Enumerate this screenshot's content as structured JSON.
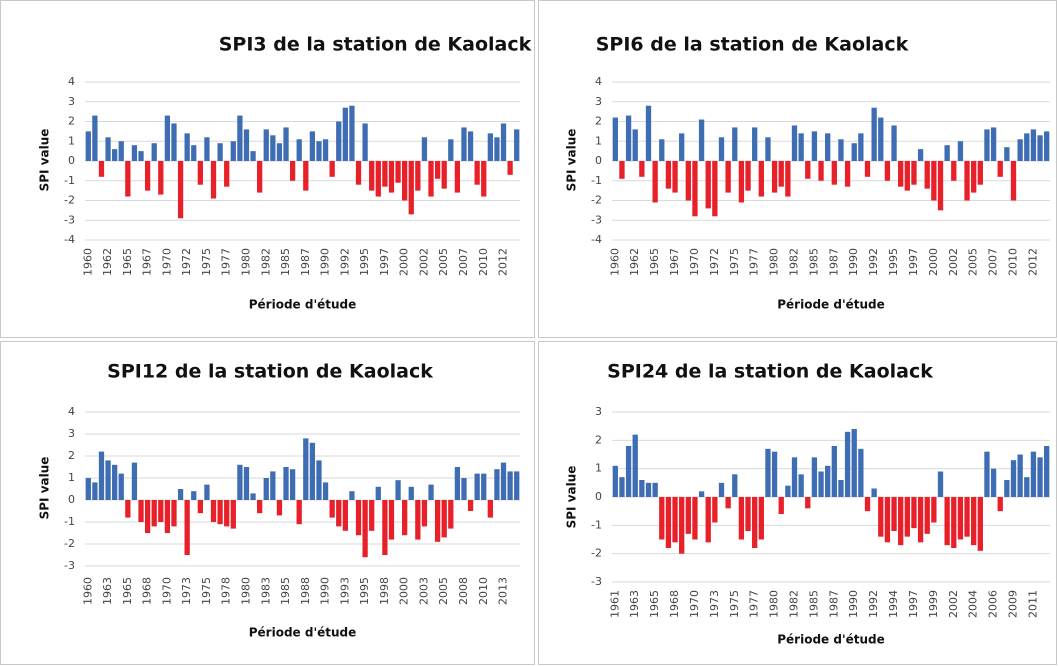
{
  "chart_data": [
    {
      "type": "bar",
      "title": "SPI3 de la station de Kaolack",
      "y_label": "SPI value",
      "x_label": "Période d'étude",
      "categories": [
        "1960",
        null,
        null,
        "1962",
        null,
        null,
        "1965",
        null,
        null,
        "1967",
        null,
        null,
        "1970",
        null,
        null,
        "1972",
        null,
        null,
        "1975",
        null,
        null,
        "1977",
        null,
        null,
        "1980",
        null,
        null,
        "1982",
        null,
        null,
        "1985",
        null,
        null,
        "1987",
        null,
        null,
        "1990",
        null,
        null,
        "1992",
        null,
        null,
        "1995",
        null,
        null,
        "1997",
        null,
        null,
        "2000",
        null,
        null,
        "2002",
        null,
        null,
        "2005",
        null,
        null,
        "2007",
        null,
        null,
        "2010",
        null,
        null,
        "2012",
        null,
        null
      ],
      "values": [
        1.5,
        2.3,
        -0.8,
        1.2,
        0.6,
        1.0,
        -1.8,
        0.8,
        0.5,
        -1.5,
        0.9,
        -1.7,
        2.3,
        1.9,
        -2.9,
        1.4,
        0.8,
        -1.2,
        1.2,
        -1.9,
        0.9,
        -1.3,
        1.0,
        2.3,
        1.6,
        0.5,
        -1.6,
        1.6,
        1.3,
        0.9,
        1.7,
        -1.0,
        1.1,
        -1.5,
        1.5,
        1.0,
        1.1,
        -0.8,
        2.0,
        2.7,
        2.8,
        -1.2,
        1.9,
        -1.5,
        -1.8,
        -1.3,
        -1.6,
        -1.1,
        -2.0,
        -2.7,
        -1.5,
        1.2,
        -1.8,
        -0.9,
        -1.4,
        1.1,
        -1.6,
        1.7,
        1.5,
        -1.2,
        -1.8,
        1.4,
        1.2,
        1.9,
        -0.7,
        1.6
      ],
      "pos_color": "#3f6db3",
      "neg_color": "#e8202a",
      "ylim": [
        -4,
        4
      ],
      "yticks": [
        -4,
        -3,
        -2,
        -1,
        0,
        1,
        2,
        3,
        4
      ],
      "grid": true
    },
    {
      "type": "bar",
      "title": "SPI6 de la station de Kaolack",
      "y_label": "SPI value",
      "x_label": "Période d'étude",
      "categories": [
        "1960",
        null,
        null,
        "1962",
        null,
        null,
        "1965",
        null,
        null,
        "1967",
        null,
        null,
        "1970",
        null,
        null,
        "1972",
        null,
        null,
        "1975",
        null,
        null,
        "1977",
        null,
        null,
        "1980",
        null,
        null,
        "1982",
        null,
        null,
        "1985",
        null,
        null,
        "1987",
        null,
        null,
        "1990",
        null,
        null,
        "1992",
        null,
        null,
        "1995",
        null,
        null,
        "1997",
        null,
        null,
        "2000",
        null,
        null,
        "2002",
        null,
        null,
        "2005",
        null,
        null,
        "2007",
        null,
        null,
        "2010",
        null,
        null,
        "2012",
        null,
        null
      ],
      "values": [
        2.2,
        -0.9,
        2.3,
        1.6,
        -0.8,
        2.8,
        -2.1,
        1.1,
        -1.4,
        -1.6,
        1.4,
        -2.0,
        -2.8,
        2.1,
        -2.4,
        -2.8,
        1.2,
        -1.6,
        1.7,
        -2.1,
        -1.5,
        1.7,
        -1.8,
        1.2,
        -1.6,
        -1.3,
        -1.8,
        1.8,
        1.4,
        -0.9,
        1.5,
        -1.0,
        1.4,
        -1.2,
        1.1,
        -1.3,
        0.9,
        1.4,
        -0.8,
        2.7,
        2.2,
        -1.0,
        1.8,
        -1.3,
        -1.5,
        -1.2,
        0.6,
        -1.4,
        -2.0,
        -2.5,
        0.8,
        -1.0,
        1.0,
        -2.0,
        -1.6,
        -1.2,
        1.6,
        1.7,
        -0.8,
        0.7,
        -2.0,
        1.1,
        1.4,
        1.6,
        1.3,
        1.5
      ],
      "pos_color": "#3f6db3",
      "neg_color": "#e8202a",
      "ylim": [
        -4,
        4
      ],
      "yticks": [
        -4,
        -3,
        -2,
        -1,
        0,
        1,
        2,
        3,
        4
      ],
      "grid": true
    },
    {
      "type": "bar",
      "title": "SPI12 de la station de Kaolack",
      "y_label": "SPI value",
      "x_label": "Période d'étude",
      "categories": [
        "1960",
        null,
        null,
        "1963",
        null,
        null,
        "1965",
        null,
        null,
        "1968",
        null,
        null,
        "1970",
        null,
        null,
        "1973",
        null,
        null,
        "1975",
        null,
        null,
        "1978",
        null,
        null,
        "1980",
        null,
        null,
        "1983",
        null,
        null,
        "1985",
        null,
        null,
        "1988",
        null,
        null,
        "1990",
        null,
        null,
        "1993",
        null,
        null,
        "1995",
        null,
        null,
        "1998",
        null,
        null,
        "2000",
        null,
        null,
        "2003",
        null,
        null,
        "2005",
        null,
        null,
        "2008",
        null,
        null,
        "2010",
        null,
        null,
        "2013",
        null,
        null
      ],
      "values": [
        1.0,
        0.8,
        2.2,
        1.8,
        1.6,
        1.2,
        -0.8,
        1.7,
        -1.0,
        -1.5,
        -1.2,
        -1.0,
        -1.5,
        -1.2,
        0.5,
        -2.5,
        0.4,
        -0.6,
        0.7,
        -1.0,
        -1.1,
        -1.2,
        -1.3,
        1.6,
        1.5,
        0.3,
        -0.6,
        1.0,
        1.3,
        -0.7,
        1.5,
        1.4,
        -1.1,
        2.8,
        2.6,
        1.8,
        0.8,
        -0.8,
        -1.2,
        -1.4,
        0.4,
        -1.6,
        -2.6,
        -1.4,
        0.6,
        -2.5,
        -1.8,
        0.9,
        -1.6,
        0.6,
        -1.8,
        -1.2,
        0.7,
        -1.9,
        -1.7,
        -1.3,
        1.5,
        1.0,
        -0.5,
        1.2,
        1.2,
        -0.8,
        1.4,
        1.7,
        1.3,
        1.3
      ],
      "pos_color": "#3f6db3",
      "neg_color": "#e8202a",
      "ylim": [
        -3,
        4
      ],
      "yticks": [
        -3,
        -2,
        -1,
        0,
        1,
        2,
        3,
        4
      ],
      "grid": true
    },
    {
      "type": "bar",
      "title": "SPI24 de la station de Kaolack",
      "y_label": "SPI value",
      "x_label": "Période d'étude",
      "categories": [
        "1961",
        null,
        null,
        "1963",
        null,
        null,
        "1965",
        null,
        null,
        "1968",
        null,
        null,
        "1970",
        null,
        null,
        "1973",
        null,
        null,
        "1975",
        null,
        null,
        "1977",
        null,
        null,
        "1980",
        null,
        null,
        "1982",
        null,
        null,
        "1985",
        null,
        null,
        "1987",
        null,
        null,
        "1990",
        null,
        null,
        "1992",
        null,
        null,
        "1994",
        null,
        null,
        "1997",
        null,
        null,
        "1999",
        null,
        null,
        "2002",
        null,
        null,
        "2004",
        null,
        null,
        "2006",
        null,
        null,
        "2009",
        null,
        null,
        "2011",
        null,
        null
      ],
      "values": [
        1.1,
        0.7,
        1.8,
        2.2,
        0.6,
        0.5,
        0.5,
        -1.5,
        -1.8,
        -1.6,
        -2.0,
        -1.3,
        -1.5,
        0.2,
        -1.6,
        -0.9,
        0.5,
        -0.4,
        0.8,
        -1.5,
        -1.2,
        -1.8,
        -1.5,
        1.7,
        1.6,
        -0.6,
        0.4,
        1.4,
        0.8,
        -0.4,
        1.4,
        0.9,
        1.1,
        1.8,
        0.6,
        2.3,
        2.4,
        1.7,
        -0.5,
        0.3,
        -1.4,
        -1.6,
        -1.2,
        -1.7,
        -1.4,
        -1.1,
        -1.6,
        -1.3,
        -0.9,
        0.9,
        -1.7,
        -1.8,
        -1.5,
        -1.4,
        -1.7,
        -1.9,
        1.6,
        1.0,
        -0.5,
        0.6,
        1.3,
        1.5,
        0.7,
        1.6,
        1.4,
        1.8
      ],
      "pos_color": "#3f6db3",
      "neg_color": "#e8202a",
      "ylim": [
        -3,
        3
      ],
      "yticks": [
        -3,
        -2,
        -1,
        0,
        1,
        2,
        3
      ],
      "grid": true
    }
  ]
}
